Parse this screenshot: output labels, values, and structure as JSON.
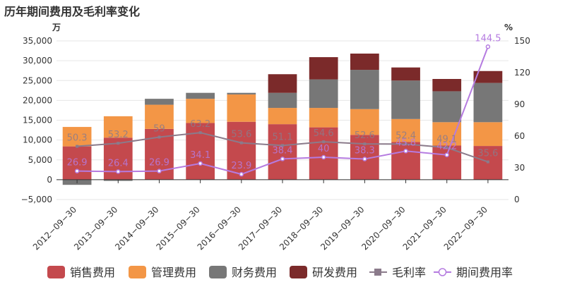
{
  "chart_data": {
    "type": "bar",
    "title": "历年期间费用及毛利率变化",
    "y_left_unit": "万",
    "y_right_unit": "%",
    "y_left_lim": [
      -5000,
      35000
    ],
    "y_left_ticks": [
      "35,000",
      "30,000",
      "25,000",
      "20,000",
      "15,000",
      "10,000",
      "5,000",
      "0",
      "−5,000"
    ],
    "y_right_lim": [
      0,
      150
    ],
    "y_right_ticks": [
      "150",
      "120",
      "90",
      "60",
      "30",
      "0"
    ],
    "categories": [
      "2012−09−30",
      "2013−09−30",
      "2014−09−30",
      "2015−09−30",
      "2016−09−30",
      "2017−09−30",
      "2018−09−30",
      "2019−09−30",
      "2020−09−30",
      "2021−09−30",
      "2022−09−30"
    ],
    "series": [
      {
        "name": "销售费用",
        "type": "bar",
        "axis": "left",
        "color": "#c4494d",
        "values": [
          8400,
          10600,
          12800,
          14300,
          14600,
          14000,
          13200,
          11300,
          9500,
          8600,
          8500
        ]
      },
      {
        "name": "管理费用",
        "type": "bar",
        "axis": "left",
        "color": "#f39646",
        "values": [
          4900,
          5400,
          6100,
          6100,
          6900,
          4100,
          4900,
          6500,
          5800,
          5900,
          6000
        ]
      },
      {
        "name": "财务费用",
        "type": "bar",
        "axis": "left",
        "color": "#777777",
        "values": [
          -1300,
          -300,
          1500,
          1500,
          400,
          3800,
          7200,
          9900,
          9700,
          7800,
          9900
        ]
      },
      {
        "name": "研发费用",
        "type": "bar",
        "axis": "left",
        "color": "#7b2a2a",
        "values": [
          0,
          0,
          0,
          0,
          0,
          4700,
          5600,
          4100,
          3300,
          3100,
          3000
        ]
      },
      {
        "name": "毛利率",
        "type": "line",
        "axis": "right",
        "color": "#8b7b8b",
        "marker": "square",
        "values": [
          50.3,
          53.2,
          59,
          63.2,
          53.6,
          51.1,
          54.6,
          52.6,
          52.4,
          49.1,
          35.6
        ],
        "labels": [
          "50.3",
          "53.2",
          "59",
          "63.2",
          "53.6",
          "51.1",
          "54.6",
          "52.6",
          "52.4",
          "49.1",
          "35.6"
        ]
      },
      {
        "name": "期间费用率",
        "type": "line",
        "axis": "right",
        "color": "#b57be0",
        "marker": "circle",
        "values": [
          26.9,
          26.4,
          26.9,
          34.1,
          23.9,
          38.4,
          40,
          38.3,
          45.8,
          42.2,
          144.5
        ],
        "labels": [
          "26.9",
          "26.4",
          "26.9",
          "34.1",
          "23.9",
          "38.4",
          "40",
          "38.3",
          "45.8",
          "42.2",
          "144.5"
        ]
      }
    ],
    "legend_position": "bottom",
    "grid": true
  }
}
